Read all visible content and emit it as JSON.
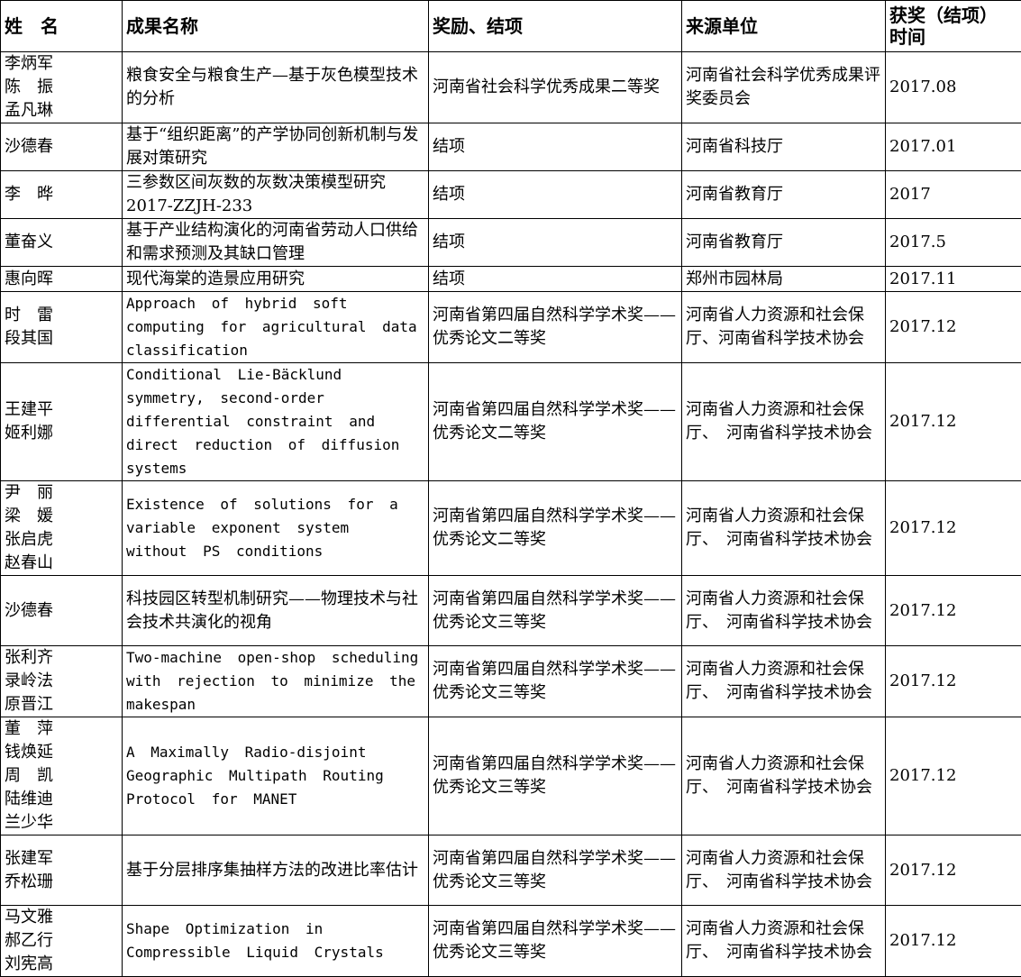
{
  "headers": [
    "姓　名",
    "成果名称",
    "奖励、结项",
    "来源单位",
    "获奖（结项）\n时间"
  ],
  "rows": [
    {
      "names": "李炳军\n陈　振\n孟凡琳",
      "title": "粮食安全与粮食生产—基于灰色模型技术的分析",
      "award": "河南省社会科学优秀成果二等奖",
      "source": "河南省社会科学优秀成果评奖委员会",
      "date": "2017.08",
      "en": false
    },
    {
      "names": "沙德春",
      "title": "基于“组织距离”的产学协同创新机制与发展对策研究",
      "award": "结项",
      "source": "河南省科技厅",
      "date": "2017.01",
      "en": false
    },
    {
      "names": "李　晔",
      "title": "三参数区间灰数的灰数决策模型研究2017-ZZJH-233",
      "award": "结项",
      "source": "河南省教育厅",
      "date": "2017",
      "en": false
    },
    {
      "names": "董奋义",
      "title": "基于产业结构演化的河南省劳动人口供给和需求预测及其缺口管理",
      "award": "结项",
      "source": "河南省教育厅",
      "date": "2017.5",
      "en": false
    },
    {
      "names": "惠向晖",
      "title": "现代海棠的造景应用研究",
      "award": "结项",
      "source": "郑州市园林局",
      "date": "2017.11",
      "en": false
    },
    {
      "names": "时　雷\n段其国",
      "title": "Approach of hybrid soft computing for agricultural data classification",
      "award": "河南省第四届自然科学学术奖——优秀论文二等奖",
      "source": "河南省人力资源和社会保厅、河南省科学技术协会",
      "date": "2017.12",
      "en": true
    },
    {
      "names": "王建平\n姬利娜",
      "title": "Conditional Lie-Bäcklund symmetry, second-order differential constraint and direct reduction of diffusion systems",
      "award": "河南省第四届自然科学学术奖——优秀论文二等奖",
      "source": "河南省人力资源和社会保厅、　河南省科学技术协会",
      "date": "2017.12",
      "en": true
    },
    {
      "names": "尹　丽\n梁　媛\n张启虎\n赵春山",
      "title": "Existence of solutions for a variable exponent system without PS conditions",
      "award": "河南省第四届自然科学学术奖——优秀论文二等奖",
      "source": "河南省人力资源和社会保厅、　河南省科学技术协会",
      "date": "2017.12",
      "en": true
    },
    {
      "names": "沙德春",
      "title": "科技园区转型机制研究——物理技术与社会技术共演化的视角",
      "award": "河南省第四届自然科学学术奖——优秀论文三等奖",
      "source": "河南省人力资源和社会保厅、　河南省科学技术协会",
      "date": "2017.12",
      "en": false
    },
    {
      "names": "张利齐\n录岭法\n原晋江",
      "title": "Two-machine open-shop scheduling with rejection to minimize the makespan",
      "award": "河南省第四届自然科学学术奖——优秀论文三等奖",
      "source": "河南省人力资源和社会保厅、　河南省科学技术协会",
      "date": "2017.12",
      "en": true
    },
    {
      "names": "董　萍\n钱焕延\n周　凯\n陆维迪\n兰少华",
      "title": "A Maximally Radio-disjoint Geographic Multipath Routing Protocol for MANET",
      "award": "河南省第四届自然科学学术奖——优秀论文三等奖",
      "source": "河南省人力资源和社会保厅、　河南省科学技术协会",
      "date": "2017.12",
      "en": true
    },
    {
      "names": "张建军\n乔松珊",
      "title": "基于分层排序集抽样方法的改进比率估计",
      "award": "河南省第四届自然科学学术奖——优秀论文三等奖",
      "source": "河南省人力资源和社会保厅、　河南省科学技术协会",
      "date": "2017.12",
      "en": false
    },
    {
      "names": "马文雅\n郝乙行\n刘宪高",
      "title": "Shape Optimization in Compressible Liquid Crystals",
      "award": "河南省第四届自然科学学术奖——优秀论文三等奖",
      "source": "河南省人力资源和社会保厅、　河南省科学技术协会",
      "date": "2017.12",
      "en": true
    }
  ]
}
